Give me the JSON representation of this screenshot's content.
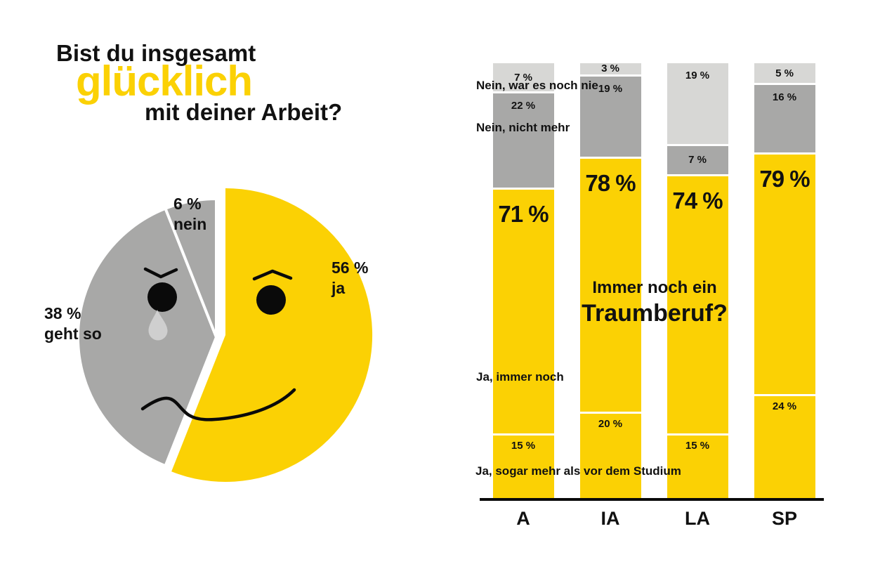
{
  "colors": {
    "yellow": "#fbd104",
    "gray_dark": "#a8a8a7",
    "gray_light": "#d7d7d5",
    "tear": "#cfcfcf",
    "text": "#111111",
    "background": "#ffffff"
  },
  "title": {
    "line1": "Bist du insgesamt",
    "line2": "glücklich",
    "line3": "mit deiner Arbeit?"
  },
  "pie": {
    "labels": {
      "nein_pct": "6 %",
      "nein_word": "nein",
      "ja_pct": "56 %",
      "ja_word": "ja",
      "gehtso_pct": "38 %",
      "gehtso_word": "geht so"
    }
  },
  "bar_chart": {
    "center_title_line1": "Immer noch ein",
    "center_title_line2": "Traumberuf?",
    "side_labels": {
      "nein_war_es_noch_nie": "Nein, war es noch nie",
      "nein_nicht_mehr": "Nein, nicht mehr",
      "ja_immer_noch": "Ja, immer noch",
      "ja_sogar_mehr": "Ja, sogar mehr als vor dem Studium"
    }
  },
  "chart_data": [
    {
      "type": "pie",
      "title": "Bist du insgesamt glücklich mit deiner Arbeit?",
      "unit": "%",
      "slices": [
        {
          "label": "ja",
          "value": 56,
          "color": "#fbd104"
        },
        {
          "label": "geht so",
          "value": 38,
          "color": "#a8a8a7"
        },
        {
          "label": "nein",
          "value": 6,
          "color": "#a8a8a7"
        }
      ],
      "style": "smiley face: happy yellow slice (exploded right), sad gray slice with teardrop, small gray 'nein' sliver at top"
    },
    {
      "type": "bar",
      "stacked": true,
      "title": "Immer noch ein Traumberuf?",
      "unit": "%",
      "ylim": [
        0,
        100
      ],
      "categories": [
        "A",
        "IA",
        "LA",
        "SP"
      ],
      "bars": [
        {
          "category": "A",
          "nein_war_es_noch_nie": 7,
          "nein_nicht_mehr": 22,
          "ja_gesamt": 71,
          "ja_sogar_mehr_als_vor_dem_studium": 15
        },
        {
          "category": "IA",
          "nein_war_es_noch_nie": 3,
          "nein_nicht_mehr": 19,
          "ja_gesamt": 78,
          "ja_sogar_mehr_als_vor_dem_studium": 20
        },
        {
          "category": "LA",
          "nein_war_es_noch_nie": 19,
          "nein_nicht_mehr": 7,
          "ja_gesamt": 74,
          "ja_sogar_mehr_als_vor_dem_studium": 15
        },
        {
          "category": "SP",
          "nein_war_es_noch_nie": 5,
          "nein_nicht_mehr": 16,
          "ja_gesamt": 79,
          "ja_sogar_mehr_als_vor_dem_studium": 24
        }
      ]
    }
  ]
}
